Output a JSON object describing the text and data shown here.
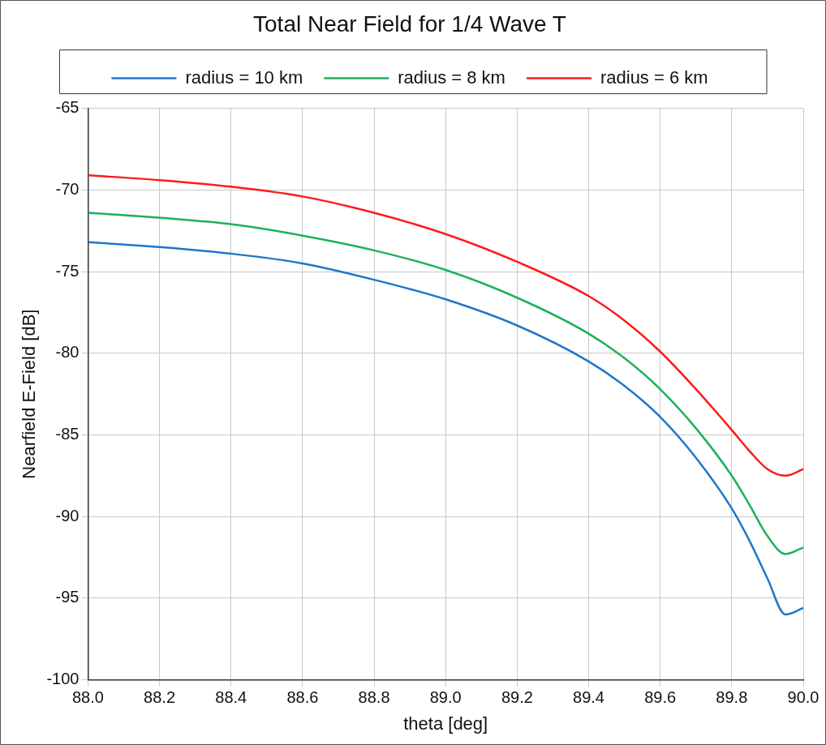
{
  "chart_data": {
    "type": "line",
    "title": "Total Near Field for 1/4 Wave T",
    "xlabel": "theta [deg]",
    "ylabel": "Nearfield E-Field [dB]",
    "x": [
      88.0,
      88.2,
      88.4,
      88.6,
      88.8,
      89.0,
      89.2,
      89.4,
      89.5,
      89.6,
      89.7,
      89.8,
      89.85,
      89.9,
      89.95,
      90.0
    ],
    "series": [
      {
        "name": "radius = 10 km",
        "color": "#1f77c8",
        "values": [
          -73.2,
          -73.5,
          -73.9,
          -74.5,
          -75.5,
          -76.7,
          -78.3,
          -80.5,
          -82.0,
          -83.9,
          -86.4,
          -89.5,
          -91.5,
          -93.8,
          -96.0,
          -95.6
        ]
      },
      {
        "name": "radius = 8 km",
        "color": "#1db15a",
        "values": [
          -71.4,
          -71.7,
          -72.1,
          -72.8,
          -73.7,
          -74.9,
          -76.6,
          -78.8,
          -80.3,
          -82.2,
          -84.6,
          -87.5,
          -89.3,
          -91.2,
          -92.3,
          -91.9
        ]
      },
      {
        "name": "radius = 6 km",
        "color": "#ff1a1a",
        "values": [
          -69.1,
          -69.4,
          -69.8,
          -70.4,
          -71.4,
          -72.7,
          -74.4,
          -76.5,
          -78.0,
          -79.9,
          -82.2,
          -84.7,
          -86.0,
          -87.1,
          -87.5,
          -87.1
        ]
      }
    ],
    "xlim": [
      88.0,
      90.0
    ],
    "xticks": [
      {
        "value": 88,
        "label": "88.0"
      },
      88.2,
      88.4,
      88.6,
      88.8,
      {
        "value": 89,
        "label": "89.0"
      },
      89.2,
      89.4,
      89.6,
      89.8,
      {
        "value": 90,
        "label": "90.0"
      }
    ],
    "ylim": [
      -100,
      -65
    ],
    "yticks": [
      -100,
      -95,
      -90,
      -85,
      -80,
      -75,
      -70,
      -65
    ],
    "grid": true,
    "legend": "top",
    "marker": "none",
    "line_style": "solid"
  }
}
